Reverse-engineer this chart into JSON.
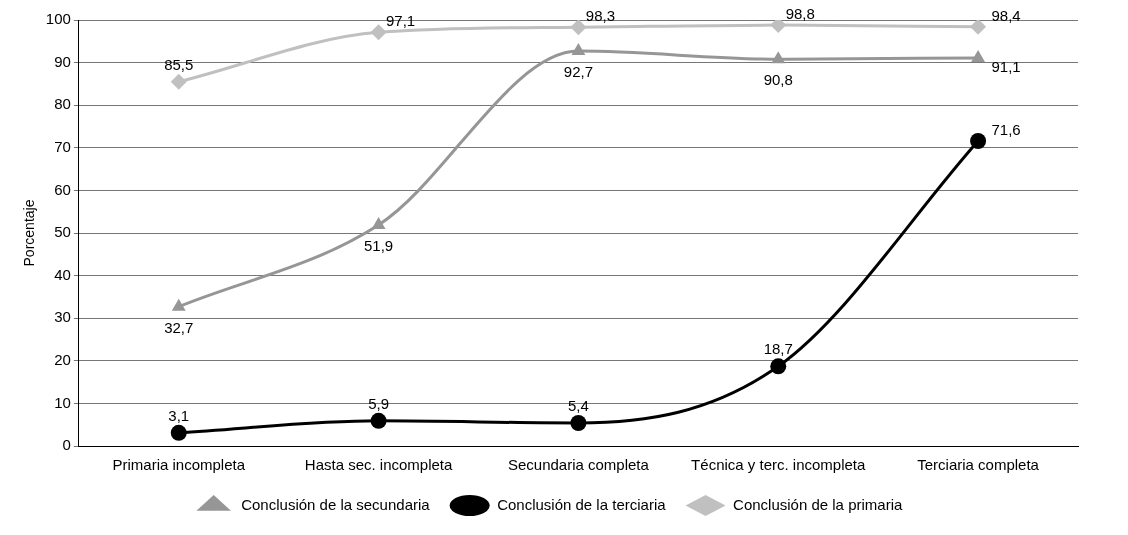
{
  "chart_data": {
    "type": "line",
    "ylabel": "Porcentaje",
    "categories": [
      "Primaria incompleta",
      "Hasta sec. incompleta",
      "Secundaria completa",
      "Técnica y terc. incompleta",
      "Terciaria completa"
    ],
    "series": [
      {
        "name": "Conclusión de la secundaria",
        "color": "#969696",
        "marker": "triangle",
        "values": [
          32.7,
          51.9,
          92.7,
          90.8,
          91.1
        ],
        "value_labels": [
          "32,7",
          "51,9",
          "92,7",
          "90,8",
          "91,1"
        ]
      },
      {
        "name": "Conclusión de la terciaria",
        "color": "#000000",
        "marker": "circle",
        "values": [
          3.1,
          5.9,
          5.4,
          18.7,
          71.6
        ],
        "value_labels": [
          "3,1",
          "5,9",
          "5,4",
          "18,7",
          "71,6"
        ]
      },
      {
        "name": "Conclusión de la primaria",
        "color": "#c0c0c0",
        "marker": "diamond",
        "values": [
          85.5,
          97.1,
          98.3,
          98.8,
          98.4
        ],
        "value_labels": [
          "85,5",
          "97,1",
          "98,3",
          "98,8",
          "98,4"
        ]
      }
    ],
    "ylim": [
      0,
      100
    ],
    "yticks": [
      0,
      10,
      20,
      30,
      40,
      50,
      60,
      70,
      80,
      90,
      100
    ],
    "grid": "y",
    "legend": "bottom",
    "line_style": "solid"
  }
}
